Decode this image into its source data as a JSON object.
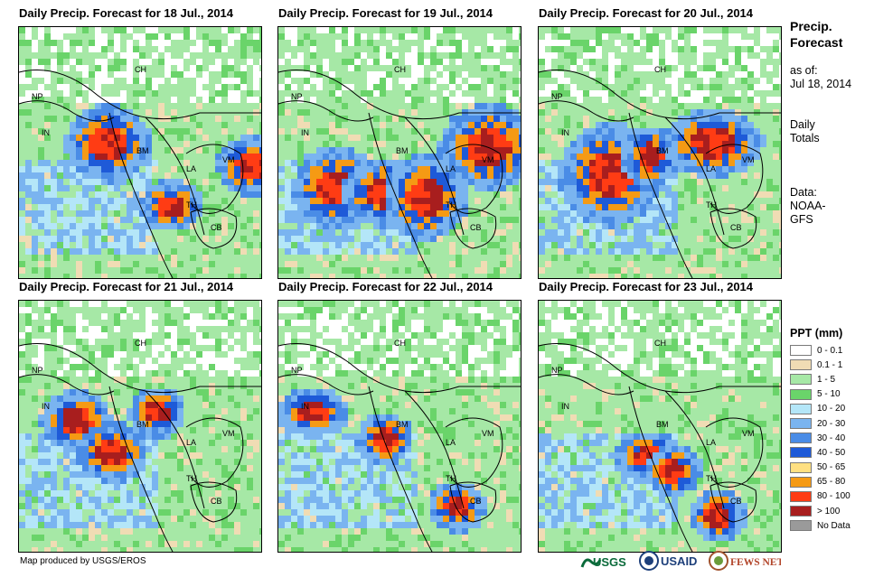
{
  "panels": [
    {
      "title": "Daily Precip. Forecast for 18 Jul., 2014"
    },
    {
      "title": "Daily Precip. Forecast for 19 Jul., 2014"
    },
    {
      "title": "Daily Precip. Forecast for 20 Jul., 2014"
    },
    {
      "title": "Daily Precip. Forecast for 21 Jul., 2014"
    },
    {
      "title": "Daily Precip. Forecast for 22 Jul., 2014"
    },
    {
      "title": "Daily Precip. Forecast for 23 Jul., 2014"
    }
  ],
  "map_labels": {
    "ch": "CH",
    "np": "NP",
    "in": "IN",
    "bm": "BM",
    "la": "LA",
    "vm": "VM",
    "th": "TH",
    "cb": "CB"
  },
  "side": {
    "title_line1": "Precip.",
    "title_line2": "Forecast",
    "asof_label": "as of:",
    "asof_date": "Jul 18, 2014",
    "totals_line1": "Daily",
    "totals_line2": "Totals",
    "data_label": "Data:",
    "source_line1": "NOAA-",
    "source_line2": "GFS"
  },
  "legend": {
    "title": "PPT (mm)",
    "items": [
      {
        "label": "0 - 0.1",
        "color": "#ffffff"
      },
      {
        "label": "0.1 - 1",
        "color": "#f0dcb4"
      },
      {
        "label": "1 - 5",
        "color": "#a6e8a6"
      },
      {
        "label": "5 - 10",
        "color": "#6ad46a"
      },
      {
        "label": "10 - 20",
        "color": "#b4e6f8"
      },
      {
        "label": "20 - 30",
        "color": "#7ab4f0"
      },
      {
        "label": "30 - 40",
        "color": "#4a8ce6"
      },
      {
        "label": "40 - 50",
        "color": "#1e5ad8"
      },
      {
        "label": "50 - 65",
        "color": "#ffe082"
      },
      {
        "label": "65 - 80",
        "color": "#f59a14"
      },
      {
        "label": "80 - 100",
        "color": "#ff3c14"
      },
      {
        "label": "> 100",
        "color": "#a81e1e"
      },
      {
        "label": "No Data",
        "color": "#9a9a9a"
      }
    ]
  },
  "credit": "Map produced by USGS/EROS",
  "logos": {
    "usgs": "USGS",
    "usaid": "USAID",
    "fewsnet": "FEWS NET"
  }
}
